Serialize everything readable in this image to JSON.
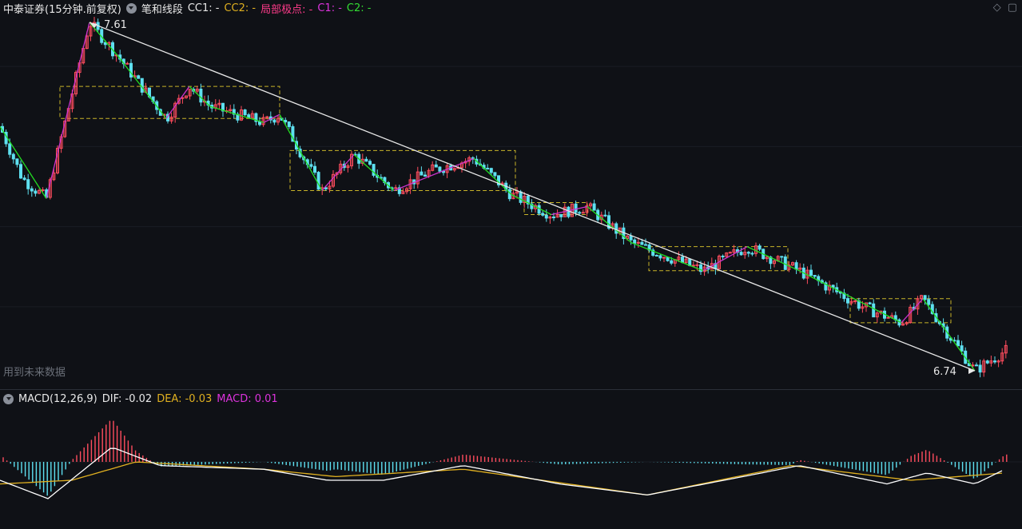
{
  "main_header": {
    "title": "中泰证券(15分钟.前复权)",
    "indicator": "笔和线段",
    "cc1": "CC1: -",
    "cc2": "CC2: -",
    "local_extreme": "局部极点: -",
    "c1": "C1: -",
    "c2": "C2: -"
  },
  "macd_header": {
    "name": "MACD(12,26,9)",
    "dif": "DIF: -0.02",
    "dea": "DEA: -0.03",
    "macd": "MACD: 0.01"
  },
  "toolbar": {
    "diamond_icon": "◇",
    "window_icon": "▢"
  },
  "future_label": "用到未来数据",
  "price_high": "7.61",
  "price_low": "6.74",
  "colors": {
    "up": "#ff4d5e",
    "down": "#5ee0f0",
    "bi": "#cc33cc",
    "segment": "#22dd22",
    "trend": "#e8e8e8",
    "zone": "#c8b428",
    "dif": "#ffffff",
    "dea": "#e0b020"
  },
  "chart_data": [
    {
      "type": "candlestick",
      "title": "中泰证券(15分钟.前复权)",
      "series": [
        {
          "name": "price",
          "x": [
            0,
            15,
            28,
            58,
            112,
            150,
            208,
            237,
            263,
            330,
            350,
            403,
            443,
            493,
            540,
            593,
            640,
            690,
            735,
            790,
            880,
            935,
            1000,
            1080,
            1128,
            1155,
            1220,
            1258
          ],
          "y": [
            7.35,
            7.28,
            7.22,
            7.17,
            7.61,
            7.52,
            7.37,
            7.45,
            7.4,
            7.36,
            7.38,
            7.19,
            7.28,
            7.19,
            7.24,
            7.27,
            7.18,
            7.13,
            7.15,
            7.06,
            6.99,
            7.05,
            6.99,
            6.9,
            6.86,
            6.92,
            6.74,
            6.79
          ]
        },
        {
          "name": "CC1",
          "x": [],
          "y": []
        },
        {
          "name": "CC2",
          "x": [],
          "y": []
        },
        {
          "name": "C1",
          "x": [],
          "y": []
        },
        {
          "name": "C2",
          "x": [],
          "y": []
        }
      ],
      "annotations": [
        "7.61",
        "6.74"
      ]
    },
    {
      "type": "line",
      "title": "MACD(12,26,9)",
      "series": [
        {
          "name": "DIF",
          "x": [
            0,
            60,
            140,
            200,
            330,
            410,
            480,
            580,
            700,
            810,
            930,
            1000,
            1110,
            1160,
            1220,
            1258
          ],
          "y": [
            -0.05,
            -0.1,
            0.04,
            -0.01,
            -0.02,
            -0.05,
            -0.05,
            -0.01,
            -0.06,
            -0.09,
            -0.04,
            -0.01,
            -0.06,
            -0.03,
            -0.06,
            -0.02
          ]
        },
        {
          "name": "DEA",
          "x": [
            0,
            90,
            170,
            330,
            420,
            580,
            810,
            990,
            1140,
            1258
          ],
          "y": [
            -0.06,
            -0.05,
            0.0,
            -0.02,
            -0.04,
            -0.02,
            -0.09,
            -0.01,
            -0.05,
            -0.03
          ]
        },
        {
          "name": "MACD",
          "x": [],
          "y": []
        }
      ]
    }
  ]
}
